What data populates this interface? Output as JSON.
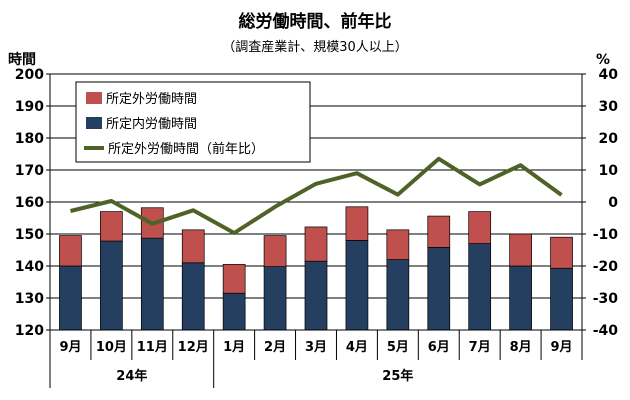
{
  "chart_data": {
    "type": "bar",
    "title": "総労働時間、前年比",
    "subtitle": "（調査産業計、規模30人以上）",
    "left_unit": "時間",
    "right_unit": "%",
    "categories": [
      "9月",
      "10月",
      "11月",
      "12月",
      "1月",
      "2月",
      "3月",
      "4月",
      "5月",
      "6月",
      "7月",
      "8月",
      "9月"
    ],
    "year_groups": [
      {
        "label": "24年",
        "count": 4
      },
      {
        "label": "25年",
        "count": 9
      }
    ],
    "left_axis": {
      "min": 120,
      "max": 200,
      "step": 10
    },
    "right_axis": {
      "min": -40,
      "max": 40,
      "step": 10
    },
    "series": [
      {
        "name": "所定内労働時間",
        "kind": "stacked-bar",
        "color": "#243f60",
        "values": [
          140.0,
          147.8,
          148.7,
          141.0,
          131.5,
          139.8,
          141.5,
          148.0,
          142.0,
          145.8,
          147.0,
          140.0,
          139.3
        ]
      },
      {
        "name": "所定外労働時間",
        "kind": "stacked-bar",
        "color": "#c0504d",
        "values": [
          9.5,
          9.2,
          9.5,
          10.3,
          9.0,
          9.7,
          10.7,
          10.5,
          9.3,
          9.8,
          10.0,
          10.0,
          9.7
        ]
      },
      {
        "name": "所定外労働時間（前年比）",
        "kind": "line",
        "axis": "right",
        "color": "#4f6228",
        "values": [
          -2.8,
          0.3,
          -6.8,
          -2.6,
          -9.7,
          -1.5,
          5.7,
          9.0,
          2.3,
          13.5,
          5.5,
          11.5,
          2.2
        ]
      }
    ],
    "legend": {
      "placement": "top-left"
    },
    "grid": true
  }
}
